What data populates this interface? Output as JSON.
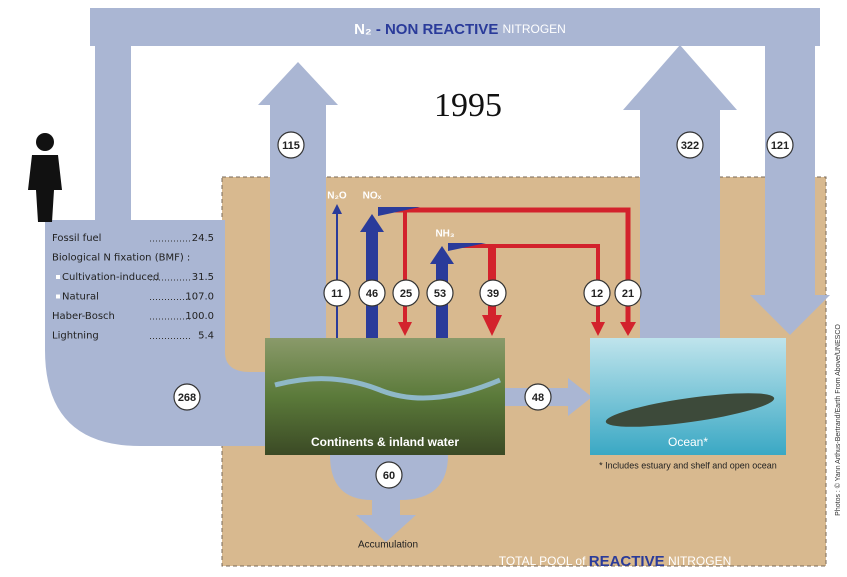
{
  "header": {
    "n2": "N₂",
    "dash": "- NON REACTIVE",
    "nitrogen": "NITROGEN"
  },
  "year": "1995",
  "sources": [
    {
      "label": "Fossil fuel",
      "value": "24.5"
    },
    {
      "label": "Biological N fixation (BMF) :"
    },
    {
      "label": "Cultivation-induced",
      "value": "31.5"
    },
    {
      "label": "Natural",
      "value": "107.0"
    },
    {
      "label": "Haber-Bosch",
      "value": "100.0"
    },
    {
      "label": "Lightning",
      "value": "5.4"
    }
  ],
  "species": {
    "n2o": "N₂O",
    "nox": "NOₓ",
    "nh3": "NH₃"
  },
  "flows": {
    "continents_to_n2": "115",
    "ocean_to_n2": "322",
    "n2_to_ocean": "121",
    "n2o": "11",
    "nox_up": "46",
    "nox_to_land": "25",
    "nh3_up": "53",
    "nh3_to_land": "39",
    "nh3_to_ocean": "12",
    "nox_to_ocean": "21",
    "creation": "268",
    "river": "48",
    "accumulation": "60"
  },
  "regions": {
    "continents": "Continents & inland water",
    "ocean": "Ocean*",
    "ocean_note": "* Includes estuary and shelf and open ocean",
    "accumulation": "Accumulation"
  },
  "footer": {
    "total_pool": "TOTAL POOL of",
    "reactive": "REACTIVE",
    "nitrogen": "NITROGEN"
  },
  "credit": "Photos : © Yann Arthus-Bertrand/Earth From Above/UNESCO"
}
